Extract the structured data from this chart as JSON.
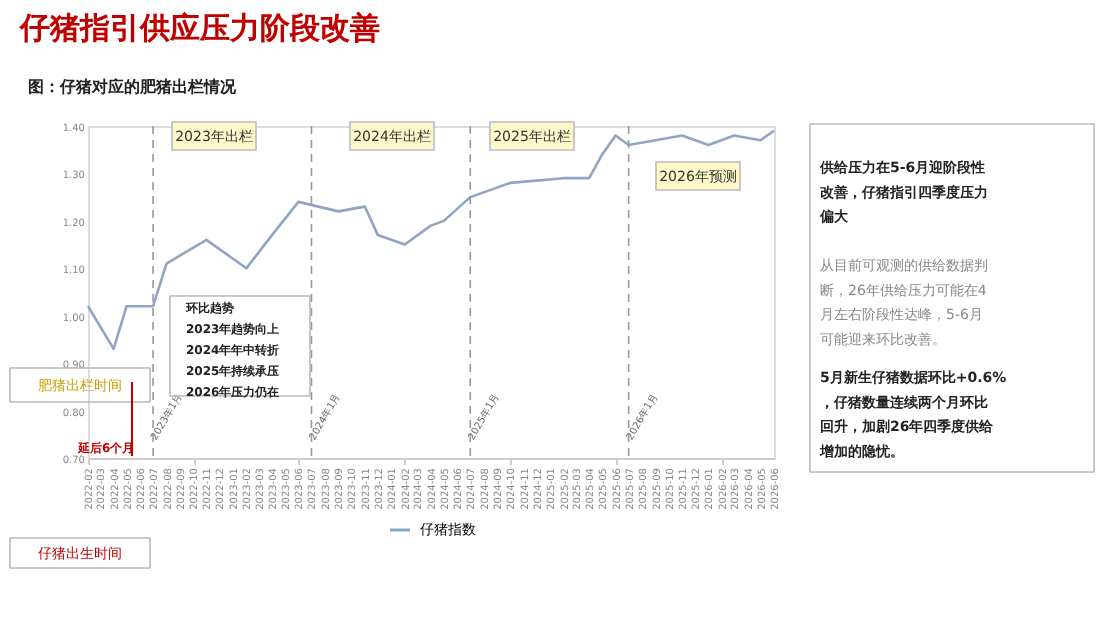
{
  "chart_data": {
    "type": "line",
    "title": "仔猪指引供应压力阶段改善",
    "subtitle": "图：仔猪对应的肥猪出栏情况",
    "x": [
      "2022-02",
      "2022-04",
      "2022-05",
      "2022-07",
      "2022-08",
      "2022-11",
      "2023-02",
      "2023-04",
      "2023-06",
      "2023-09",
      "2023-11",
      "2023-12",
      "2024-02",
      "2024-04",
      "2024-05",
      "2024-07",
      "2024-10",
      "2025-02",
      "2025-04",
      "2025-05",
      "2025-06",
      "2025-07",
      "2025-09",
      "2025-11",
      "2026-01",
      "2026-03",
      "2026-05",
      "2026-06"
    ],
    "series": [
      {
        "name": "仔猪指数",
        "color": "#8fa5c4",
        "values": [
          1.02,
          0.93,
          1.02,
          1.02,
          1.11,
          1.16,
          1.1,
          1.17,
          1.24,
          1.22,
          1.23,
          1.17,
          1.15,
          1.19,
          1.2,
          1.25,
          1.28,
          1.29,
          1.29,
          1.34,
          1.38,
          1.36,
          1.37,
          1.38,
          1.36,
          1.38,
          1.37,
          1.39
        ]
      }
    ],
    "xlim": [
      "2022-02",
      "2026-06"
    ],
    "xticks": [
      {
        "value": "2022-02",
        "label": "2022-02"
      },
      {
        "value": "2022-03",
        "label": "2022-03"
      },
      {
        "value": "2022-04",
        "label": "2022-04"
      },
      {
        "value": "2022-05",
        "label": "2022-05"
      },
      {
        "value": "2022-06",
        "label": "2022-06"
      },
      {
        "value": "2022-07",
        "label": "2022-07"
      },
      {
        "value": "2022-08",
        "label": "2022-08"
      },
      {
        "value": "2022-09",
        "label": "2022-09"
      },
      {
        "value": "2022-10",
        "label": "2022-10"
      },
      {
        "value": "2022-11",
        "label": "2022-11"
      },
      {
        "value": "2022-12",
        "label": "2022-12"
      },
      {
        "value": "2023-01",
        "label": "2023-01"
      },
      {
        "value": "2023-02",
        "label": "2023-02"
      },
      {
        "value": "2023-03",
        "label": "2023-03"
      },
      {
        "value": "2023-04",
        "label": "2023-04"
      },
      {
        "value": "2023-05",
        "label": "2023-05"
      },
      {
        "value": "2023-06",
        "label": "2023-06"
      },
      {
        "value": "2023-07",
        "label": "2023-07"
      },
      {
        "value": "2023-08",
        "label": "2023-08"
      },
      {
        "value": "2023-09",
        "label": "2023-09"
      },
      {
        "value": "2023-10",
        "label": "2023-10"
      },
      {
        "value": "2023-11",
        "label": "2023-11"
      },
      {
        "value": "2023-12",
        "label": "2023-12"
      },
      {
        "value": "2024-01",
        "label": "2024-01"
      },
      {
        "value": "2024-02",
        "label": "2024-02"
      },
      {
        "value": "2024-03",
        "label": "2024-03"
      },
      {
        "value": "2024-04",
        "label": "2024-04"
      },
      {
        "value": "2024-05",
        "label": "2024-05"
      },
      {
        "value": "2024-06",
        "label": "2024-06"
      },
      {
        "value": "2024-07",
        "label": "2024-07"
      },
      {
        "value": "2024-08",
        "label": "2024-08"
      },
      {
        "value": "2024-09",
        "label": "2024-09"
      },
      {
        "value": "2024-10",
        "label": "2024-10"
      },
      {
        "value": "2024-11",
        "label": "2024-11"
      },
      {
        "value": "2024-12",
        "label": "2024-12"
      },
      {
        "value": "2025-01",
        "label": "2025-01"
      },
      {
        "value": "2025-02",
        "label": "2025-02"
      },
      {
        "value": "2025-03",
        "label": "2025-03"
      },
      {
        "value": "2025-04",
        "label": "2025-04"
      },
      {
        "value": "2025-05",
        "label": "2025-05"
      },
      {
        "value": "2025-06",
        "label": "2025-06"
      },
      {
        "value": "2025-07",
        "label": "2025-07"
      },
      {
        "value": "2025-08",
        "label": "2025-08"
      },
      {
        "value": "2025-09",
        "label": "2025-09"
      },
      {
        "value": "2025-10",
        "label": "2025-10"
      },
      {
        "value": "2025-11",
        "label": "2025-11"
      },
      {
        "value": "2025-12",
        "label": "2025-12"
      },
      {
        "value": "2026-01",
        "label": "2026-01"
      },
      {
        "value": "2026-02",
        "label": "2026-02"
      },
      {
        "value": "2026-03",
        "label": "2026-03"
      },
      {
        "value": "2026-04",
        "label": "2026-04"
      },
      {
        "value": "2026-05",
        "label": "2026-05"
      },
      {
        "value": "2026-06",
        "label": "2026-06"
      }
    ],
    "ylim": [
      0.7,
      1.4
    ],
    "yticks": [
      {
        "value": 0.7,
        "label": "0.70"
      },
      {
        "value": 0.8,
        "label": "0.80"
      },
      {
        "value": 0.9,
        "label": "0.90"
      },
      {
        "value": 1.0,
        "label": "1.00"
      },
      {
        "value": 1.1,
        "label": "1.10"
      },
      {
        "value": 1.2,
        "label": "1.20"
      },
      {
        "value": 1.3,
        "label": "1.30"
      },
      {
        "value": 1.4,
        "label": "1.40"
      }
    ],
    "ref_lines": [
      {
        "axis": "x",
        "value": "2022-07",
        "label": "2023年1月",
        "color": "#999999",
        "line_style": "dashed"
      },
      {
        "axis": "x",
        "value": "2023-07",
        "label": "2024年1月",
        "color": "#999999",
        "line_style": "dashed"
      },
      {
        "axis": "x",
        "value": "2024-07",
        "label": "2025年1月",
        "color": "#999999",
        "line_style": "dashed"
      },
      {
        "axis": "x",
        "value": "2025-07",
        "label": "2026年1月",
        "color": "#999999",
        "line_style": "dashed"
      }
    ],
    "annotations": [
      "2023年出栏",
      "2024年出栏",
      "2025年出栏",
      "2026年预测",
      "环比趋势\n2023年趋势向上\n2024年年中转折\n2025年持续承压\n2026年压力仍在",
      "肥猪出栏时间",
      "延后6个月",
      "仔猪出生时间",
      "供给压力在5-6月迎阶段性改善，仔猪指引四季度压力偏大",
      "从目前可观测的供给数据判断，26年供给压力可能在4月左右阶段性达峰，5-6月可能迎来环比改善。",
      "5月新生仔猪数据环比+0.6%，仔猪数量连续两个月环比回升，加剧26年四季度供给增加的隐忧。"
    ],
    "legend": "bottom",
    "marker": "none",
    "line_style": "solid"
  }
}
